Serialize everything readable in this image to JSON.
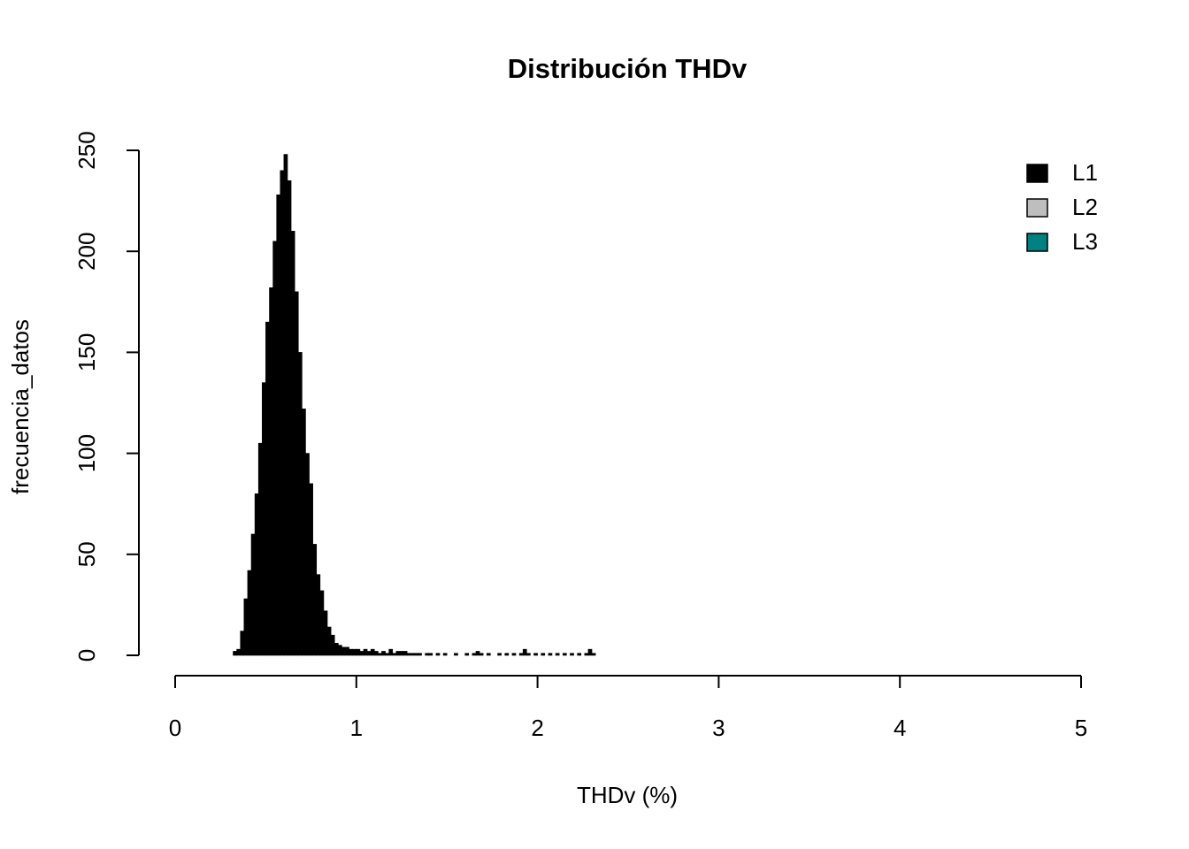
{
  "chart_data": {
    "type": "histogram",
    "title": "Distribución THDv",
    "x_label": "THDv (%)",
    "y_label": "frecuencia_datos",
    "bins": [
      0.32,
      0.34,
      0.36,
      0.38,
      0.4,
      0.42,
      0.44,
      0.46,
      0.48,
      0.5,
      0.52,
      0.54,
      0.56,
      0.58,
      0.6,
      0.62,
      0.64,
      0.66,
      0.68,
      0.7,
      0.72,
      0.74,
      0.76,
      0.78,
      0.8,
      0.82,
      0.84,
      0.86,
      0.88,
      0.9,
      0.92,
      0.94,
      0.96,
      0.98,
      1.0,
      1.02,
      1.04,
      1.06,
      1.08,
      1.1,
      1.12,
      1.14,
      1.16,
      1.18,
      1.2,
      1.22,
      1.24,
      1.26,
      1.28,
      1.3,
      1.32,
      1.34,
      1.36,
      1.38,
      1.4,
      1.42,
      1.44,
      1.46,
      1.48,
      1.5,
      1.52,
      1.54,
      1.56,
      1.58,
      1.6,
      1.62,
      1.64,
      1.66,
      1.68,
      1.7,
      1.72,
      1.74,
      1.76,
      1.78,
      1.8,
      1.82,
      1.84,
      1.86,
      1.88,
      1.9,
      1.92,
      1.94,
      1.96,
      1.98,
      2.0,
      2.02,
      2.04,
      2.06,
      2.08,
      2.1,
      2.12,
      2.14,
      2.16,
      2.18,
      2.2,
      2.22,
      2.24,
      2.26,
      2.28,
      2.3,
      2.32
    ],
    "series": [
      {
        "name": "L1",
        "color": "#000000",
        "values": [
          2,
          3,
          12,
          28,
          42,
          60,
          80,
          105,
          135,
          165,
          182,
          205,
          228,
          240,
          248,
          235,
          210,
          180,
          150,
          122,
          100,
          85,
          55,
          40,
          32,
          22,
          14,
          10,
          6,
          5,
          4,
          4,
          3,
          3,
          3,
          2,
          3,
          2,
          3,
          2,
          1,
          2,
          1,
          3,
          1,
          2,
          2,
          2,
          1,
          1,
          1,
          1,
          0,
          1,
          1,
          0,
          1,
          0,
          1,
          0,
          0,
          1,
          0,
          0,
          1,
          0,
          1,
          2,
          1,
          0,
          1,
          0,
          0,
          1,
          0,
          1,
          0,
          1,
          0,
          1,
          3,
          1,
          0,
          1,
          0,
          1,
          0,
          1,
          0,
          1,
          0,
          1,
          0,
          1,
          0,
          1,
          0,
          1,
          3,
          1
        ]
      },
      {
        "name": "L2",
        "color": "#bebebe"
      },
      {
        "name": "L3",
        "color": "#008080"
      }
    ],
    "xlim": [
      0,
      5
    ],
    "xticks": [
      0,
      1,
      2,
      3,
      4,
      5
    ],
    "ylim": [
      0,
      250
    ],
    "yticks": [
      0,
      50,
      100,
      150,
      200,
      250
    ],
    "legend": "topright"
  }
}
